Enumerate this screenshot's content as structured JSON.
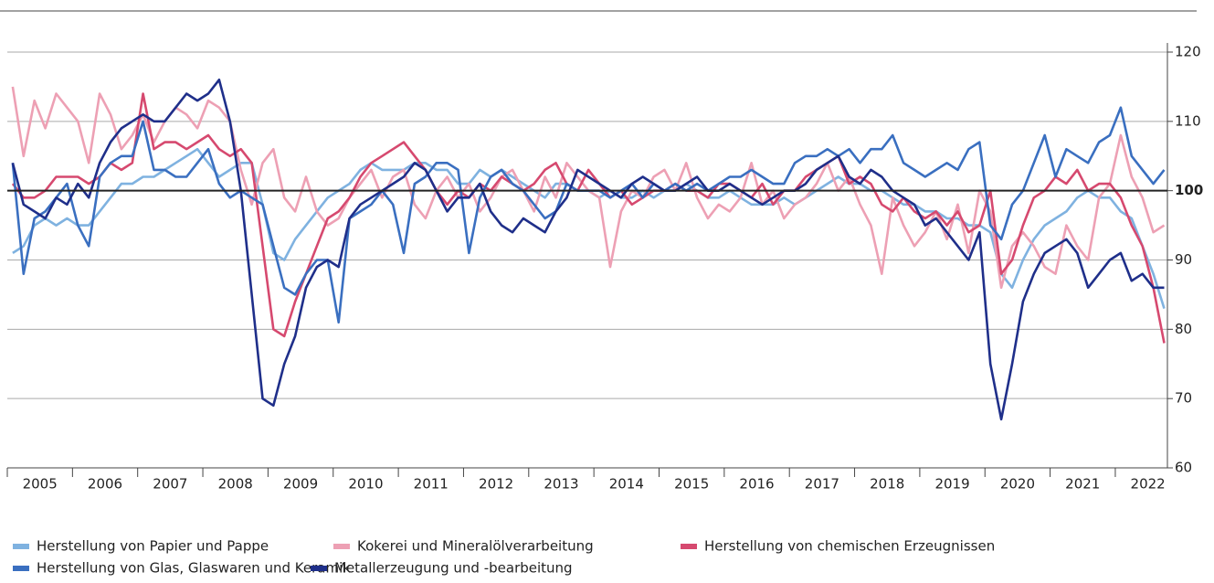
{
  "chart_data": {
    "type": "line",
    "categories": [
      "2005",
      null,
      null,
      null,
      null,
      null,
      "2006",
      null,
      null,
      null,
      null,
      null,
      "2007",
      null,
      null,
      null,
      null,
      null,
      "2008",
      null,
      null,
      null,
      null,
      null,
      "2009",
      null,
      null,
      null,
      null,
      null,
      "2010",
      null,
      null,
      null,
      null,
      null,
      "2011",
      null,
      null,
      null,
      null,
      null,
      "2012",
      null,
      null,
      null,
      null,
      null,
      "2013",
      null,
      null,
      null,
      null,
      null,
      "2014",
      null,
      null,
      null,
      null,
      null,
      "2015",
      null,
      null,
      null,
      null,
      null,
      "2016",
      null,
      null,
      null,
      null,
      null,
      "2017",
      null,
      null,
      null,
      null,
      null,
      "2018",
      null,
      null,
      null,
      null,
      null,
      "2019",
      null,
      null,
      null,
      null,
      null,
      "2020",
      null,
      null,
      null,
      null,
      null,
      "2021",
      null,
      null,
      null,
      null,
      null,
      "2022",
      null,
      null,
      null,
      null
    ],
    "series": [
      {
        "name": "Herstellung von Papier und Pappe",
        "color": "#7fb2e0",
        "values": [
          91,
          92,
          95,
          96,
          95,
          96,
          95,
          95,
          97,
          99,
          101,
          101,
          102,
          102,
          103,
          104,
          105,
          106,
          104,
          102,
          103,
          104,
          104,
          98,
          91,
          90,
          93,
          95,
          97,
          99,
          100,
          101,
          103,
          104,
          103,
          103,
          103,
          104,
          104,
          103,
          103,
          101,
          101,
          103,
          102,
          103,
          102,
          101,
          100,
          99,
          101,
          101,
          100,
          100,
          99,
          100,
          99,
          99,
          100,
          99,
          100,
          100,
          101,
          100,
          99,
          99,
          100,
          99,
          98,
          98,
          98,
          99,
          98,
          99,
          100,
          101,
          102,
          101,
          101,
          100,
          100,
          99,
          98,
          98,
          97,
          97,
          96,
          96,
          95,
          95,
          94,
          88,
          86,
          90,
          93,
          95,
          96,
          97,
          99,
          100,
          99,
          99,
          97,
          96,
          92,
          88,
          83
        ]
      },
      {
        "name": "Kokerei und Mineralölverarbeitung",
        "color": "#eda0b4",
        "values": [
          115,
          105,
          113,
          109,
          114,
          112,
          110,
          104,
          114,
          111,
          106,
          108,
          111,
          107,
          110,
          112,
          111,
          109,
          113,
          112,
          110,
          103,
          98,
          104,
          106,
          99,
          97,
          102,
          97,
          95,
          96,
          99,
          101,
          103,
          99,
          102,
          103,
          98,
          96,
          100,
          102,
          99,
          101,
          97,
          99,
          102,
          103,
          100,
          97,
          102,
          99,
          104,
          102,
          100,
          99,
          89,
          97,
          100,
          99,
          102,
          103,
          100,
          104,
          99,
          96,
          98,
          97,
          99,
          104,
          98,
          100,
          96,
          98,
          99,
          101,
          104,
          100,
          102,
          98,
          95,
          88,
          99,
          95,
          92,
          94,
          97,
          93,
          98,
          91,
          100,
          97,
          86,
          92,
          94,
          92,
          89,
          88,
          95,
          92,
          90,
          99,
          101,
          108,
          102,
          99,
          94,
          95
        ]
      },
      {
        "name": "Herstellung von chemischen Erzeugnissen",
        "color": "#d6496f",
        "values": [
          101,
          99,
          99,
          100,
          102,
          102,
          102,
          101,
          102,
          104,
          103,
          104,
          114,
          106,
          107,
          107,
          106,
          107,
          108,
          106,
          105,
          106,
          104,
          92,
          80,
          79,
          84,
          88,
          92,
          96,
          97,
          99,
          102,
          104,
          105,
          106,
          107,
          105,
          103,
          100,
          98,
          100,
          99,
          101,
          100,
          102,
          101,
          100,
          101,
          103,
          104,
          101,
          100,
          103,
          101,
          99,
          100,
          98,
          99,
          100,
          100,
          101,
          100,
          100,
          99,
          101,
          101,
          100,
          99,
          101,
          98,
          100,
          100,
          102,
          103,
          104,
          105,
          101,
          102,
          101,
          98,
          97,
          99,
          97,
          96,
          97,
          95,
          97,
          94,
          95,
          100,
          88,
          90,
          95,
          99,
          100,
          102,
          101,
          103,
          100,
          101,
          101,
          99,
          95,
          92,
          86,
          78
        ]
      },
      {
        "name": "Herstellung von Glas, Glaswaren und Keramik",
        "color": "#3a6fc0",
        "values": [
          104,
          88,
          96,
          97,
          99,
          101,
          95,
          92,
          102,
          104,
          105,
          105,
          110,
          103,
          103,
          102,
          102,
          104,
          106,
          101,
          99,
          100,
          99,
          98,
          92,
          86,
          85,
          88,
          90,
          90,
          81,
          96,
          97,
          98,
          100,
          98,
          91,
          101,
          102,
          104,
          104,
          103,
          91,
          99,
          102,
          103,
          101,
          100,
          98,
          96,
          97,
          101,
          100,
          100,
          100,
          99,
          100,
          101,
          99,
          101,
          100,
          101,
          100,
          101,
          100,
          101,
          102,
          102,
          103,
          102,
          101,
          101,
          104,
          105,
          105,
          106,
          105,
          106,
          104,
          106,
          106,
          108,
          104,
          103,
          102,
          103,
          104,
          103,
          106,
          107,
          95,
          93,
          98,
          100,
          104,
          108,
          102,
          106,
          105,
          104,
          107,
          108,
          112,
          105,
          103,
          101,
          103
        ]
      },
      {
        "name": "Metallerzeugung und -bearbeitung",
        "color": "#1f2f8a",
        "values": [
          104,
          98,
          97,
          96,
          99,
          98,
          101,
          99,
          104,
          107,
          109,
          110,
          111,
          110,
          110,
          112,
          114,
          113,
          114,
          116,
          110,
          100,
          85,
          70,
          69,
          75,
          79,
          86,
          89,
          90,
          89,
          96,
          98,
          99,
          100,
          101,
          102,
          104,
          103,
          100,
          97,
          99,
          99,
          101,
          97,
          95,
          94,
          96,
          95,
          94,
          97,
          99,
          103,
          102,
          101,
          100,
          99,
          101,
          102,
          101,
          100,
          100,
          101,
          102,
          100,
          100,
          101,
          100,
          99,
          98,
          99,
          100,
          100,
          101,
          103,
          104,
          105,
          102,
          101,
          103,
          102,
          100,
          99,
          98,
          95,
          96,
          94,
          92,
          90,
          94,
          75,
          67,
          75,
          84,
          88,
          91,
          92,
          93,
          91,
          86,
          88,
          90,
          91,
          87,
          88,
          86,
          86
        ]
      }
    ],
    "ylim": [
      60,
      120
    ],
    "yticks": [
      60,
      70,
      80,
      90,
      100,
      110,
      120
    ],
    "grid": true,
    "baseline": 100,
    "legend": "bottom"
  }
}
